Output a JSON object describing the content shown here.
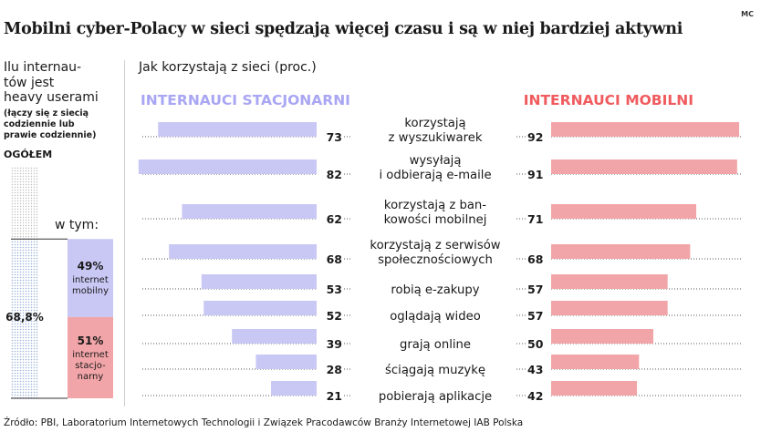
{
  "title": "Mobilni cyber-Polacy w sieci spędzają więcej czasu i są w niej bardziej aktywni",
  "credit": "MC",
  "left_panel": {
    "heading_lines": [
      "Ilu internau-",
      "tów jest",
      "heavy userami"
    ],
    "note_lines": [
      "(łączy się z siecią",
      "codziennie lub",
      "prawie codziennie)"
    ],
    "total_label": "OGÓŁEM",
    "total_value": "68,8%",
    "total_fraction": 0.688,
    "of_which_label": "w tym:",
    "segments": [
      {
        "pct_label": "49%",
        "label_lines": [
          "internet",
          "mobilny"
        ],
        "fraction": 0.49,
        "color": "#c9c8f5"
      },
      {
        "pct_label": "51%",
        "label_lines": [
          "internet",
          "stacjo-",
          "narny"
        ],
        "fraction": 0.51,
        "color": "#f2a5a8"
      }
    ]
  },
  "usage_heading": "Jak korzystają z sieci (proc.)",
  "colors": {
    "stationary": "#c9c8f5",
    "stationary_header": "#a9a6f3",
    "mobile": "#f2a5a8",
    "mobile_header": "#ef5b5e",
    "dots": "#9db3d8"
  },
  "chart_data": {
    "type": "bar",
    "orientation": "horizontal-butterfly",
    "series": [
      {
        "name": "INTERNAUCI STACJONARNI",
        "values": [
          73,
          82,
          62,
          68,
          53,
          52,
          39,
          28,
          21
        ]
      },
      {
        "name": "INTERNAUCI MOBILNI",
        "values": [
          92,
          91,
          71,
          68,
          57,
          57,
          50,
          43,
          42
        ]
      }
    ],
    "categories": [
      [
        "korzystają",
        "z wyszukiwarek"
      ],
      [
        "wysyłają",
        "i odbierają e-maile"
      ],
      [
        "korzystają z ban-",
        "kowości mobilnej"
      ],
      [
        "korzystają z serwisów",
        "społecznościowych"
      ],
      [
        "robią e-zakupy"
      ],
      [
        "oglądają wideo"
      ],
      [
        "grają online"
      ],
      [
        "ściągają muzykę"
      ],
      [
        "pobierają aplikacje"
      ]
    ],
    "xlim": [
      0,
      100
    ]
  },
  "source": "Źródło: PBI, Laboratorium Internetowych Technologii i Związek Pracodawców Branży Internetowej IAB Polska"
}
